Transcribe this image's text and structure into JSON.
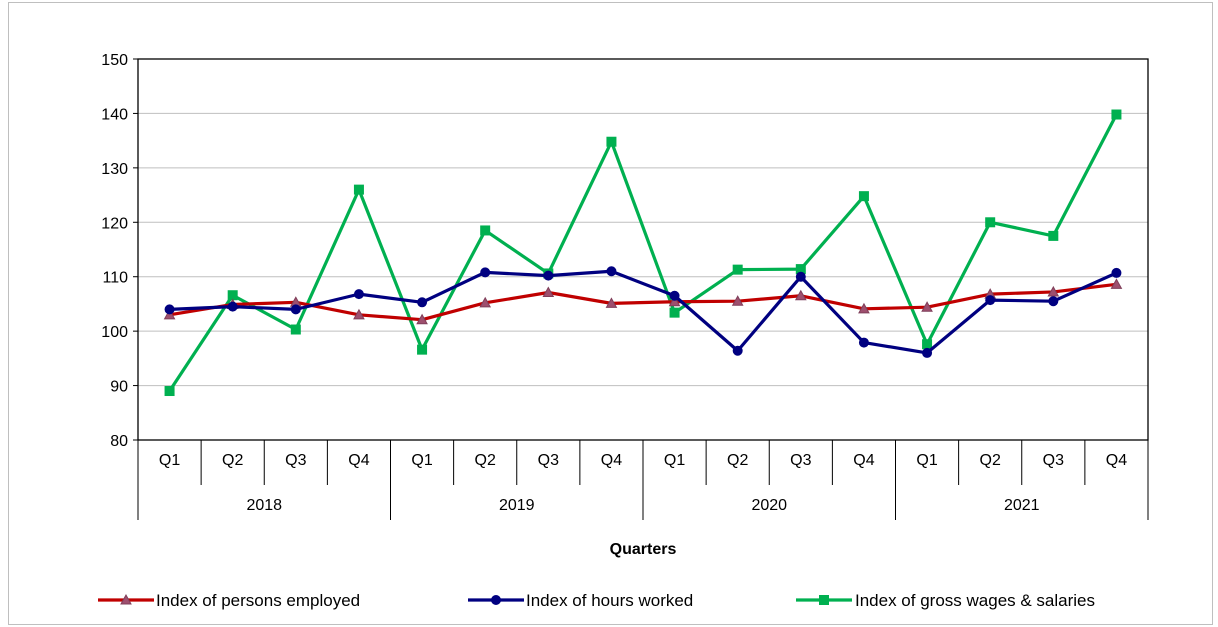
{
  "chart_data": {
    "type": "line",
    "xlabel": "Quarters",
    "ylim": [
      80,
      150
    ],
    "yticks": [
      80,
      90,
      100,
      110,
      120,
      130,
      140,
      150
    ],
    "grid": true,
    "legend_position": "bottom",
    "categories": [
      "Q1",
      "Q2",
      "Q3",
      "Q4",
      "Q1",
      "Q2",
      "Q3",
      "Q4",
      "Q1",
      "Q2",
      "Q3",
      "Q4",
      "Q1",
      "Q2",
      "Q3",
      "Q4"
    ],
    "years": [
      "2018",
      "2019",
      "2020",
      "2021"
    ],
    "series": [
      {
        "name": "Index of persons employed",
        "color": "#c00000",
        "marker": "triangle",
        "values": [
          103.0,
          104.9,
          105.3,
          103.0,
          102.1,
          105.2,
          107.1,
          105.1,
          105.4,
          105.5,
          106.5,
          104.1,
          104.4,
          106.8,
          107.2,
          108.6
        ]
      },
      {
        "name": "Index of hours worked",
        "color": "#000080",
        "marker": "circle",
        "values": [
          104.0,
          104.5,
          104.0,
          106.8,
          105.3,
          110.8,
          110.2,
          111.0,
          106.5,
          96.4,
          110.0,
          97.9,
          96.0,
          105.7,
          105.5,
          110.7
        ]
      },
      {
        "name": "Index of gross wages & salaries",
        "color": "#00b050",
        "marker": "square",
        "values": [
          89.0,
          106.6,
          100.3,
          126.0,
          96.6,
          118.5,
          110.6,
          134.8,
          103.4,
          111.3,
          111.4,
          124.8,
          97.6,
          120.0,
          117.5,
          139.8
        ]
      }
    ]
  }
}
